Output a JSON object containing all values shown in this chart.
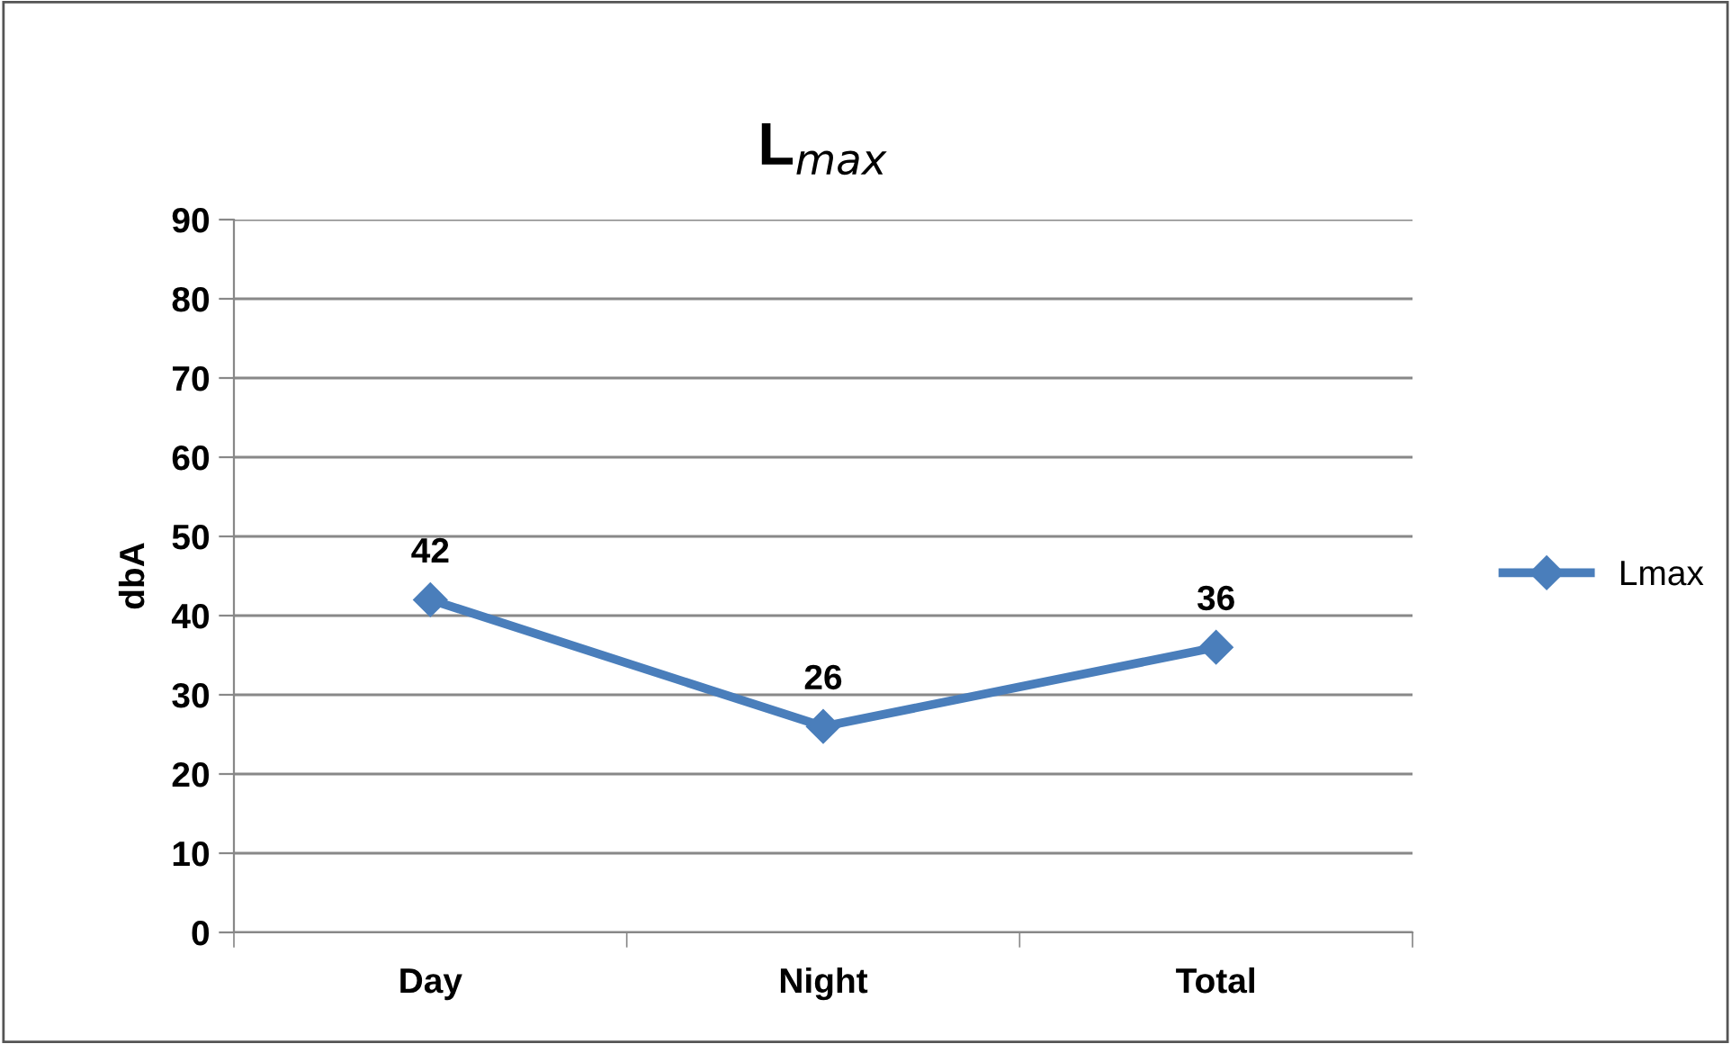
{
  "chart_data": {
    "type": "line",
    "title": "L$_{max}$",
    "ylabel": "dbA",
    "categories": [
      "Day",
      "Night",
      "Total"
    ],
    "series": [
      {
        "name": "Lmax",
        "color": "#4a7ebb",
        "values": [
          42,
          26,
          36
        ]
      }
    ],
    "ylim": [
      0,
      90
    ],
    "yticks": [
      0,
      10,
      20,
      30,
      40,
      50,
      60,
      70,
      80,
      90
    ],
    "grid": "y",
    "legend": "right",
    "marker": "diamond",
    "line_style": "solid",
    "data_labels": true
  }
}
